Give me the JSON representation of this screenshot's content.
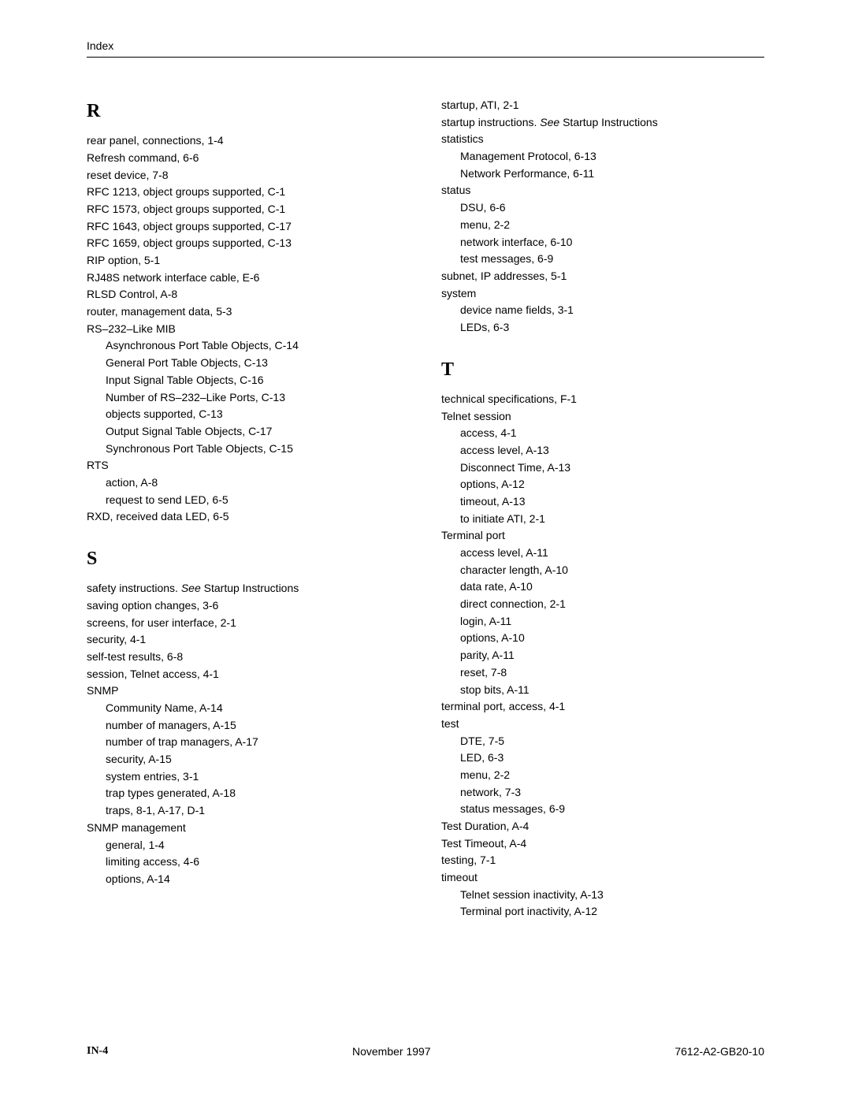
{
  "header": "Index",
  "left": {
    "letterR": "R",
    "r": [
      "rear panel, connections,  1-4",
      "Refresh command,  6-6",
      "reset device,  7-8",
      "RFC 1213, object groups supported,  C-1",
      "RFC 1573, object groups supported,  C-1",
      "RFC 1643, object groups supported,  C-17",
      "RFC 1659, object groups supported,  C-13",
      "RIP option,  5-1",
      "RJ48S network interface cable,  E-6",
      "RLSD Control,  A-8",
      "router, management data,  5-3",
      "RS–232–Like MIB"
    ],
    "r_sub1": [
      "Asynchronous Port Table Objects,  C-14",
      "General Port Table Objects,  C-13",
      "Input Signal Table Objects,  C-16",
      "Number of RS–232–Like Ports,  C-13",
      "objects supported,  C-13",
      "Output Signal Table Objects,  C-17",
      "Synchronous Port Table Objects,  C-15"
    ],
    "r_rts": "RTS",
    "r_sub2": [
      "action,  A-8",
      "request to send LED,  6-5"
    ],
    "r_last": "RXD, received data LED,  6-5",
    "letterS": "S",
    "s_safety_pre": "safety instructions. ",
    "s_safety_see": "See",
    "s_safety_post": " Startup Instructions",
    "s1": [
      "saving option changes,  3-6",
      "screens, for user interface,  2-1",
      "security,  4-1",
      "self-test results,  6-8",
      "session, Telnet access,  4-1",
      "SNMP"
    ],
    "s_sub1": [
      "Community Name,  A-14",
      "number of managers,  A-15",
      "number of trap managers,  A-17",
      "security,  A-15",
      "system entries,  3-1",
      "trap types generated,  A-18",
      "traps,  8-1,  A-17,  D-1"
    ],
    "s_snmpmgmt": "SNMP management",
    "s_sub2": [
      "general,  1-4",
      "limiting access,  4-6",
      "options,  A-14"
    ]
  },
  "right": {
    "pre": [
      "startup, ATI,  2-1"
    ],
    "startup_pre": "startup instructions. ",
    "startup_see": "See",
    "startup_post": " Startup Instructions",
    "stats": "statistics",
    "stats_sub": [
      "Management Protocol,  6-13",
      "Network Performance,  6-11"
    ],
    "status": "status",
    "status_sub": [
      "DSU,  6-6",
      "menu,  2-2",
      "network interface,  6-10",
      "test messages,  6-9"
    ],
    "subnet": "subnet, IP addresses,  5-1",
    "system": "system",
    "system_sub": [
      "device name fields,  3-1",
      "LEDs,  6-3"
    ],
    "letterT": "T",
    "t1": [
      "technical specifications,  F-1",
      "Telnet session"
    ],
    "t_sub1": [
      "access,  4-1",
      "access level,  A-13",
      "Disconnect Time,  A-13",
      "options,  A-12",
      "timeout,  A-13",
      "to initiate ATI,  2-1"
    ],
    "t_term": "Terminal port",
    "t_sub2": [
      "access level,  A-11",
      "character length,  A-10",
      "data rate,  A-10",
      "direct connection,  2-1",
      "login,  A-11",
      "options,  A-10",
      "parity,  A-11",
      "reset,  7-8",
      "stop bits,  A-11"
    ],
    "t_termport": "terminal port, access,  4-1",
    "t_test": "test",
    "t_sub3": [
      "DTE,  7-5",
      "LED,  6-3",
      "menu,  2-2",
      "network,  7-3",
      "status messages,  6-9"
    ],
    "t_after": [
      "Test Duration,  A-4",
      "Test Timeout,  A-4",
      "testing,  7-1",
      "timeout"
    ],
    "t_sub4": [
      "Telnet session inactivity,  A-13",
      "Terminal port inactivity,  A-12"
    ]
  },
  "footer": {
    "left": "IN-4",
    "center": "November 1997",
    "right": "7612-A2-GB20-10"
  }
}
